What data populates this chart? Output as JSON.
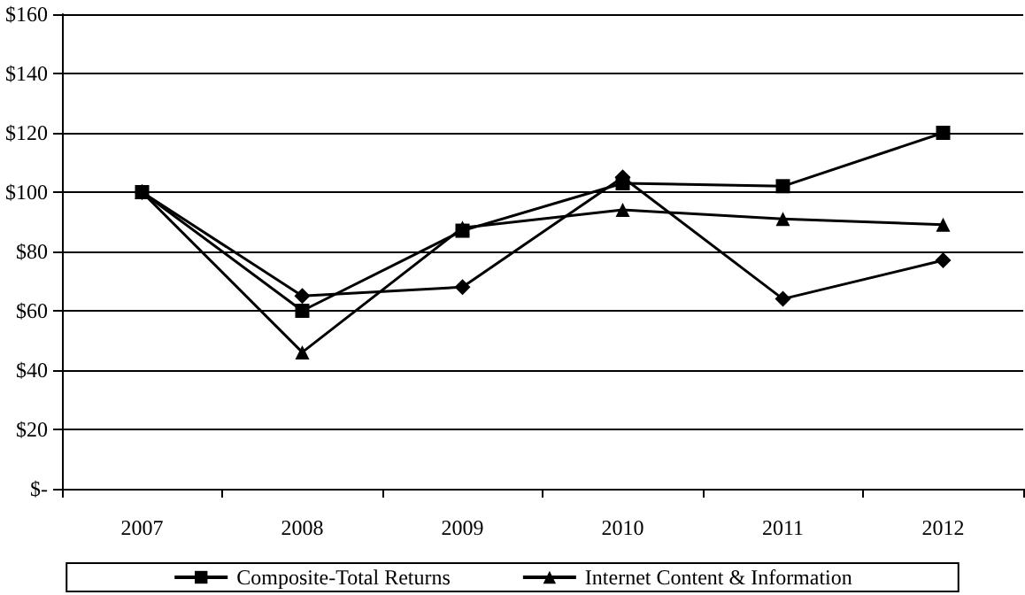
{
  "chart_data": {
    "type": "line",
    "categories": [
      "2007",
      "2008",
      "2009",
      "2010",
      "2011",
      "2012"
    ],
    "series": [
      {
        "color": "#000000",
        "marker": "diamond",
        "values": [
          100,
          65,
          68,
          105,
          64,
          77
        ]
      },
      {
        "name": "Composite-Total Returns",
        "color": "#000000",
        "marker": "square",
        "values": [
          100,
          60,
          87,
          103,
          102,
          120
        ]
      },
      {
        "name": "Internet Content & Information",
        "color": "#000000",
        "marker": "triangle",
        "values": [
          100,
          46,
          88,
          94,
          91,
          89
        ]
      }
    ],
    "ylim": [
      0,
      160
    ],
    "yticks": [
      {
        "value": 0,
        "label": "$-"
      },
      {
        "value": 20,
        "label": "$20"
      },
      {
        "value": 40,
        "label": "$40"
      },
      {
        "value": 60,
        "label": "$60"
      },
      {
        "value": 80,
        "label": "$80"
      },
      {
        "value": 100,
        "label": "$100"
      },
      {
        "value": 120,
        "label": "$120"
      },
      {
        "value": 140,
        "label": "$140"
      },
      {
        "value": 160,
        "label": "$160"
      }
    ],
    "grid": "y",
    "legend": "bottom",
    "line_style": "solid"
  }
}
